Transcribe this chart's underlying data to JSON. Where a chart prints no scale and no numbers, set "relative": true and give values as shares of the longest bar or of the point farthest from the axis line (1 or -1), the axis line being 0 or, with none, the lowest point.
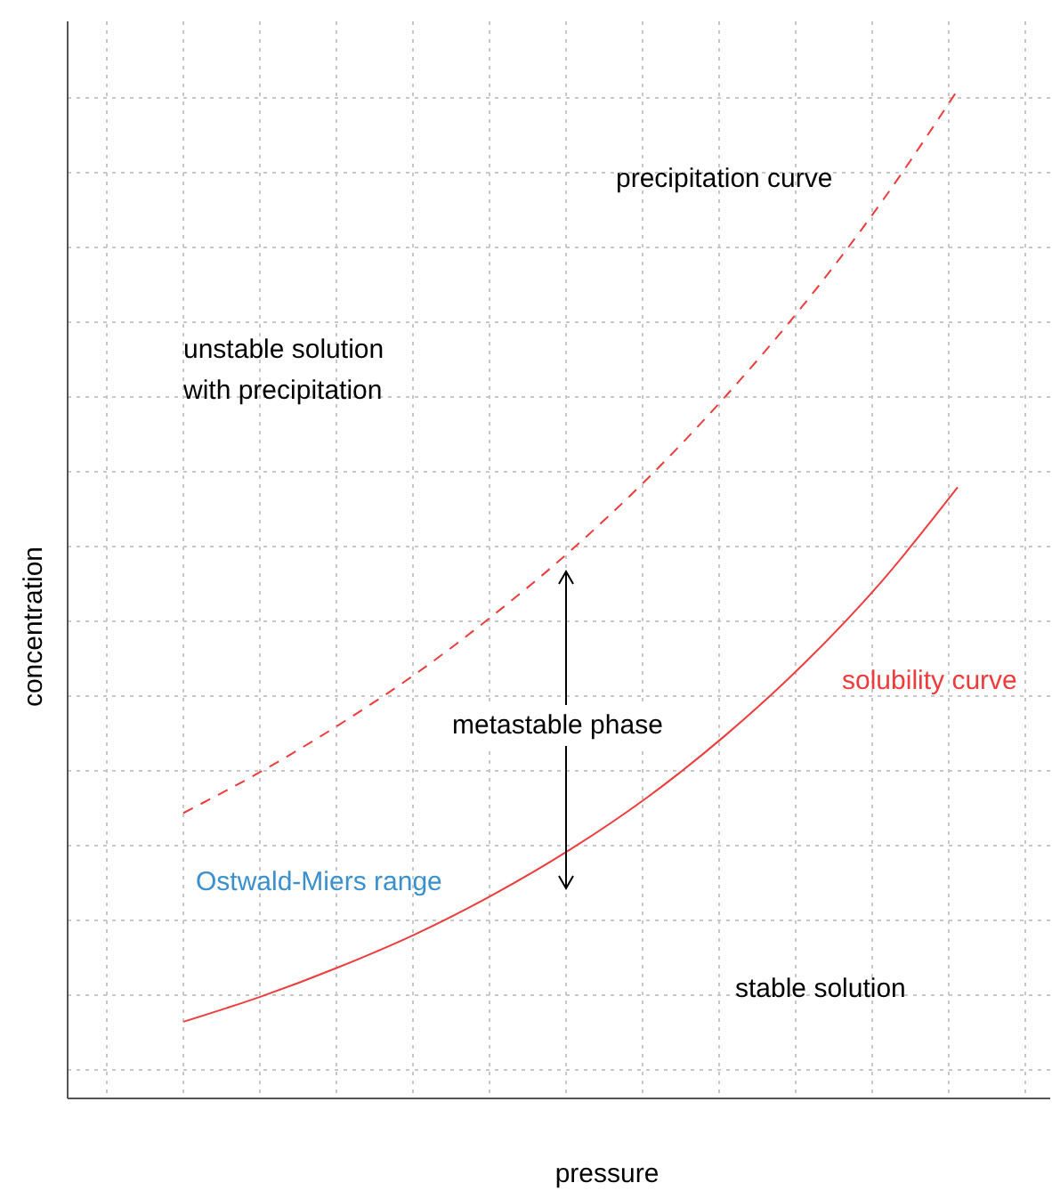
{
  "chart_data": {
    "type": "line",
    "relative": true,
    "xlabel": "pressure",
    "ylabel": "concentration",
    "grid": true,
    "marker": "none",
    "categories": [
      null,
      null,
      null,
      null,
      null,
      null,
      null,
      null,
      null,
      null,
      null
    ],
    "series": [
      {
        "name": "precipitation curve",
        "color": "#ee3b3b",
        "line_style": "dashed",
        "values": [
          0.283,
          0.324,
          0.37,
          0.421,
          0.479,
          0.543,
          0.615,
          0.696,
          0.786,
          0.887,
          1
        ]
      },
      {
        "name": "solubility curve",
        "color": "#ee3b3b",
        "line_style": "solid",
        "values": [
          0.076,
          0.101,
          0.13,
          0.163,
          0.202,
          0.247,
          0.299,
          0.36,
          0.43,
          0.511,
          0.606
        ]
      }
    ],
    "annotations": [
      "unstable solution\nwith precipitation",
      "metastable phase",
      "Ostwald-Miers range",
      "stable solution"
    ]
  }
}
